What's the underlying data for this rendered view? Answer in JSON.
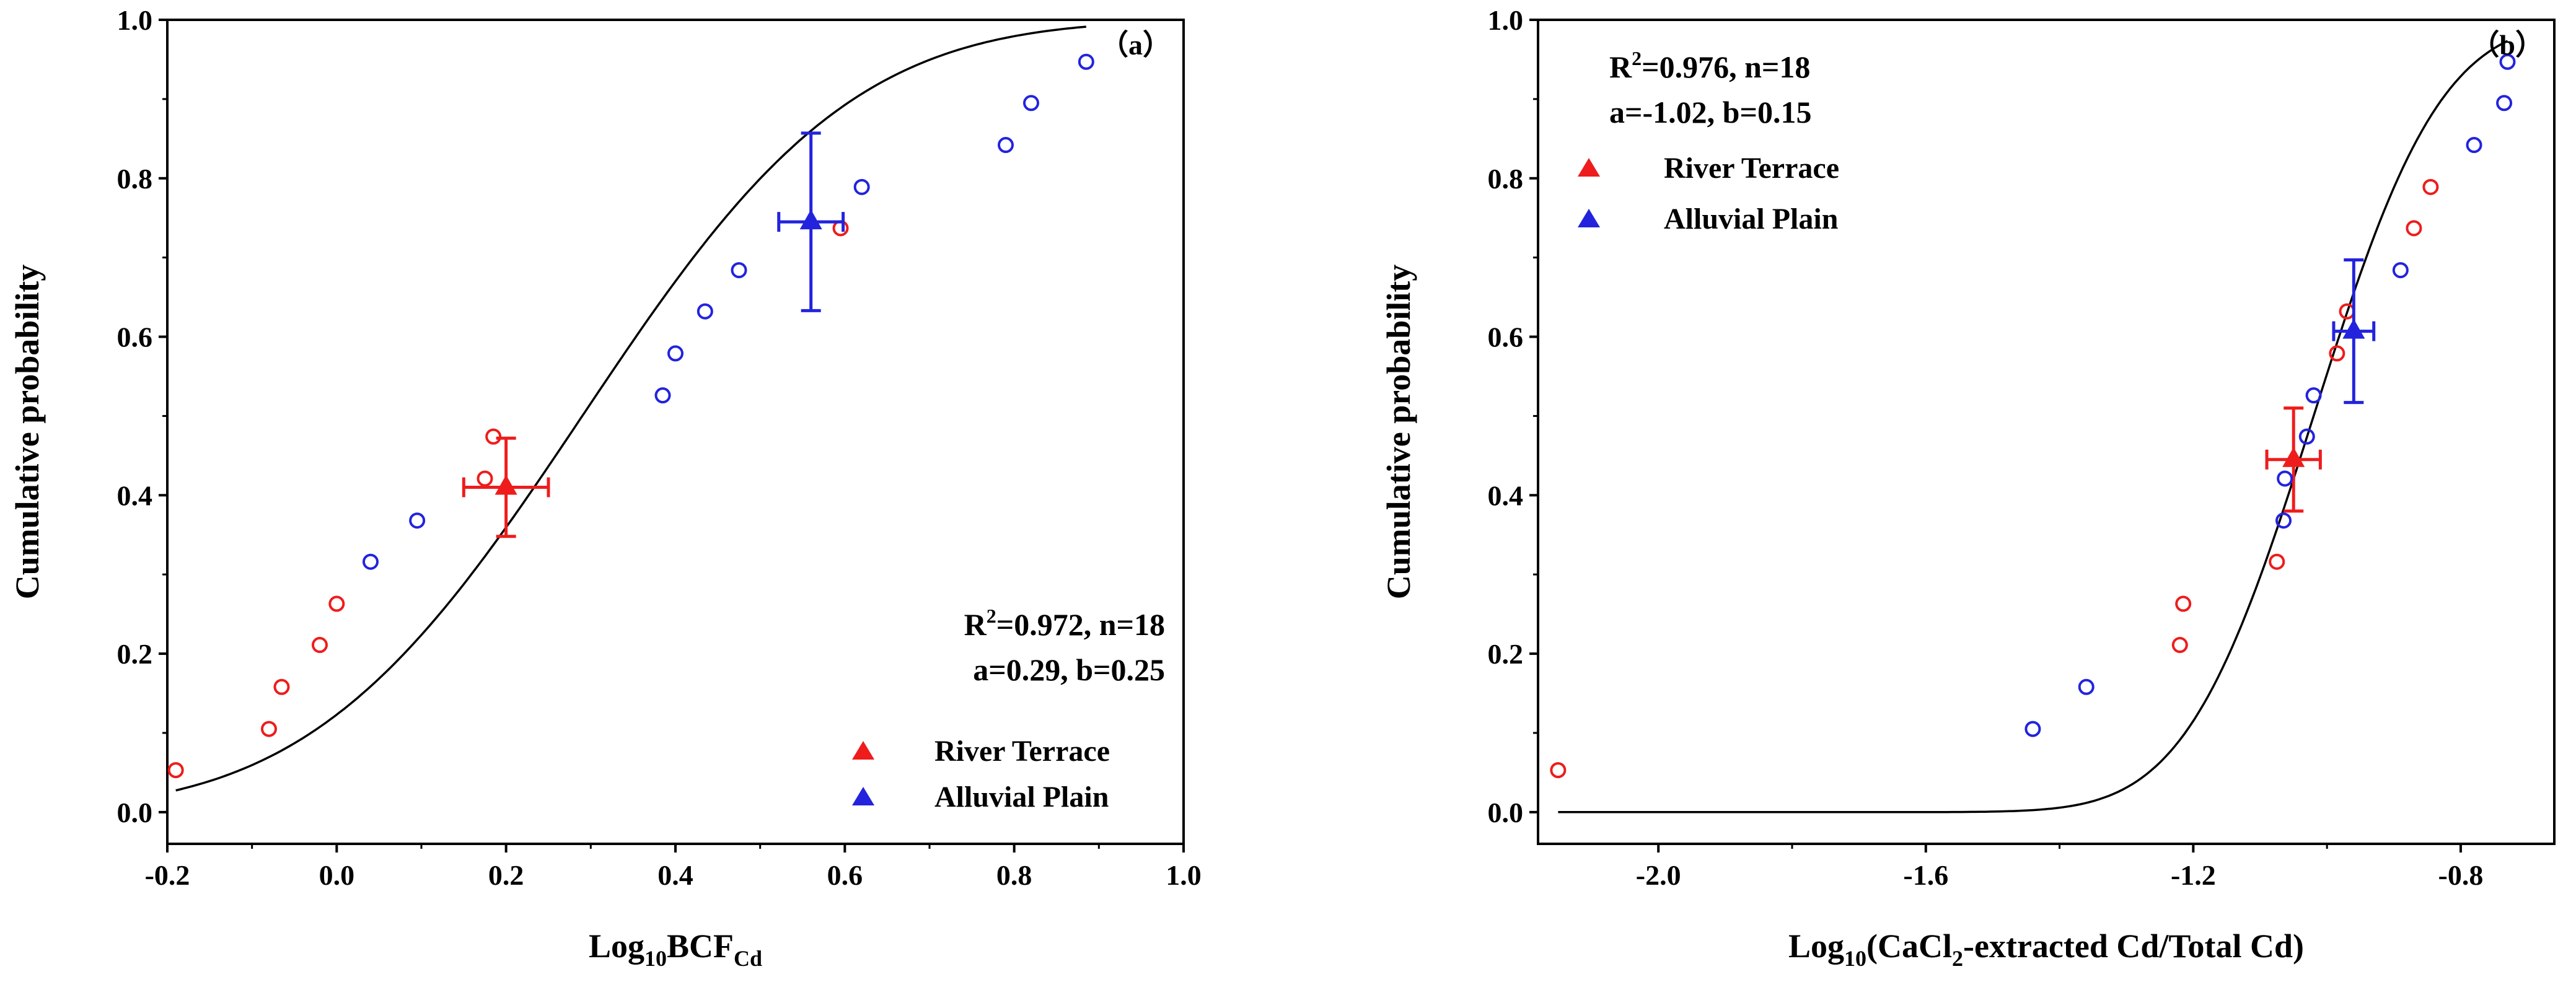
{
  "chart_data": [
    {
      "type": "scatter",
      "panel_label": "（a）",
      "title": "",
      "xlabel": {
        "prefix": "Log",
        "sub": "10",
        "main": "BCF",
        "sub2": "Cd"
      },
      "ylabel": "Cumulative probability",
      "xlim": [
        -0.2,
        1.0
      ],
      "ylim": [
        -0.04,
        1.0
      ],
      "xticks": [
        -0.2,
        0.0,
        0.2,
        0.4,
        0.6,
        0.8,
        1.0
      ],
      "xtick_labels": [
        "-0.2",
        "0.0",
        "0.2",
        "0.4",
        "0.6",
        "0.8",
        "1.0"
      ],
      "yticks": [
        0.0,
        0.2,
        0.4,
        0.6,
        0.8,
        1.0
      ],
      "ytick_labels": [
        "0.0",
        "0.2",
        "0.4",
        "0.6",
        "0.8",
        "1.0"
      ],
      "annotation_lines": [
        "R",
        "2",
        "=0.972, n=18",
        "a=0.29, b=0.25"
      ],
      "fit": {
        "type": "normal_cdf",
        "mean": 0.29,
        "sd": 0.25,
        "x_range": [
          -0.19,
          0.885
        ]
      },
      "series": [
        {
          "name": "River Terrace",
          "color": "#ee1c1c",
          "points": [
            [
              -0.19,
              0.053
            ],
            [
              -0.08,
              0.105
            ],
            [
              -0.065,
              0.158
            ],
            [
              -0.02,
              0.211
            ],
            [
              0.0,
              0.263
            ],
            [
              0.175,
              0.421
            ],
            [
              0.185,
              0.474
            ],
            [
              0.595,
              0.737
            ]
          ],
          "mean_point": [
            0.2,
            0.41
          ],
          "x_err": 0.05,
          "y_err": 0.062
        },
        {
          "name": "Alluvial Plain",
          "color": "#2323dd",
          "points": [
            [
              0.04,
              0.316
            ],
            [
              0.095,
              0.368
            ],
            [
              0.385,
              0.526
            ],
            [
              0.4,
              0.579
            ],
            [
              0.435,
              0.632
            ],
            [
              0.475,
              0.684
            ],
            [
              0.62,
              0.789
            ],
            [
              0.79,
              0.842
            ],
            [
              0.82,
              0.895
            ],
            [
              0.885,
              0.947
            ]
          ],
          "mean_point": [
            0.56,
            0.745
          ],
          "x_err": 0.038,
          "y_err": 0.112
        }
      ],
      "legend": {
        "placement": "bottom-right",
        "entries": [
          "River Terrace",
          "Alluvial Plain"
        ]
      }
    },
    {
      "type": "scatter",
      "panel_label": "（b）",
      "title": "",
      "xlabel": {
        "prefix": "Log",
        "sub": "10",
        "main": "(CaCl",
        "sub2": "2",
        "suffix": "-extracted Cd/Total Cd)"
      },
      "ylabel": "Cumulative probability",
      "xlim": [
        -2.18,
        -0.66
      ],
      "ylim": [
        -0.04,
        1.0
      ],
      "xticks": [
        -2.0,
        -1.6,
        -1.2,
        -0.8
      ],
      "xtick_labels": [
        "-2.0",
        "-1.6",
        "-1.2",
        "-0.8"
      ],
      "yticks": [
        0.0,
        0.2,
        0.4,
        0.6,
        0.8,
        1.0
      ],
      "ytick_labels": [
        "0.0",
        "0.2",
        "0.4",
        "0.6",
        "0.8",
        "1.0"
      ],
      "annotation_lines": [
        "R",
        "2",
        "=0.976, n=18",
        "a=-1.02, b=0.15"
      ],
      "fit": {
        "type": "normal_cdf",
        "mean": -1.02,
        "sd": 0.15,
        "x_range": [
          -2.15,
          -0.73
        ]
      },
      "series": [
        {
          "name": "River Terrace",
          "color": "#ee1c1c",
          "points": [
            [
              -2.15,
              0.053
            ],
            [
              -1.22,
              0.211
            ],
            [
              -1.215,
              0.263
            ],
            [
              -1.075,
              0.316
            ],
            [
              -0.985,
              0.579
            ],
            [
              -0.97,
              0.632
            ],
            [
              -0.87,
              0.737
            ],
            [
              -0.845,
              0.789
            ]
          ],
          "mean_point": [
            -1.05,
            0.445
          ],
          "x_err": 0.04,
          "y_err": 0.065
        },
        {
          "name": "Alluvial Plain",
          "color": "#2323dd",
          "points": [
            [
              -1.44,
              0.105
            ],
            [
              -1.36,
              0.158
            ],
            [
              -1.065,
              0.368
            ],
            [
              -1.063,
              0.421
            ],
            [
              -1.03,
              0.474
            ],
            [
              -1.02,
              0.526
            ],
            [
              -0.89,
              0.684
            ],
            [
              -0.78,
              0.842
            ],
            [
              -0.735,
              0.895
            ],
            [
              -0.73,
              0.947
            ]
          ],
          "mean_point": [
            -0.96,
            0.607
          ],
          "x_err": 0.03,
          "y_err": 0.09
        }
      ],
      "legend": {
        "placement": "top-left",
        "entries": [
          "River Terrace",
          "Alluvial Plain"
        ]
      }
    }
  ]
}
